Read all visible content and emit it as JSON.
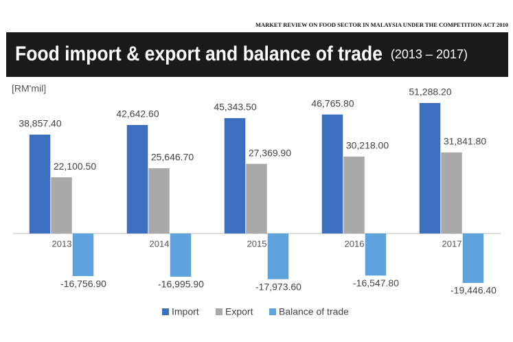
{
  "chart_data": {
    "type": "bar",
    "header": "MARKET REVIEW ON FOOD SECTOR IN MALAYSIA UNDER THE COMPETITION ACT 2010",
    "title": "Food import & export and balance of trade",
    "subtitle": "(2013 – 2017)",
    "y_label": "[RM'mil]",
    "categories": [
      "2013",
      "2014",
      "2015",
      "2016",
      "2017"
    ],
    "series": [
      {
        "name": "Import",
        "color": "#3b70bf",
        "values": [
          38857.4,
          42642.6,
          45343.5,
          46765.8,
          51288.2
        ],
        "value_labels": [
          "38,857.40",
          "42,642.60",
          "45,343.50",
          "46,765.80",
          "51,288.20"
        ]
      },
      {
        "name": "Export",
        "color": "#a9a9a9",
        "values": [
          22100.5,
          25646.7,
          27369.9,
          30218.0,
          31841.8
        ],
        "value_labels": [
          "22,100.50",
          "25,646.70",
          "27,369.90",
          "30,218.00",
          "31,841.80"
        ]
      },
      {
        "name": "Balance of trade",
        "color": "#5ea3dc",
        "values": [
          -16756.9,
          -16995.9,
          -17973.6,
          -16547.8,
          -19446.4
        ],
        "value_labels": [
          "-16,756.90",
          "-16,995.90",
          "-17,973.60",
          "-16,547.80",
          "-19,446.40"
        ]
      }
    ],
    "ylim": [
      -25000,
      60000
    ]
  }
}
